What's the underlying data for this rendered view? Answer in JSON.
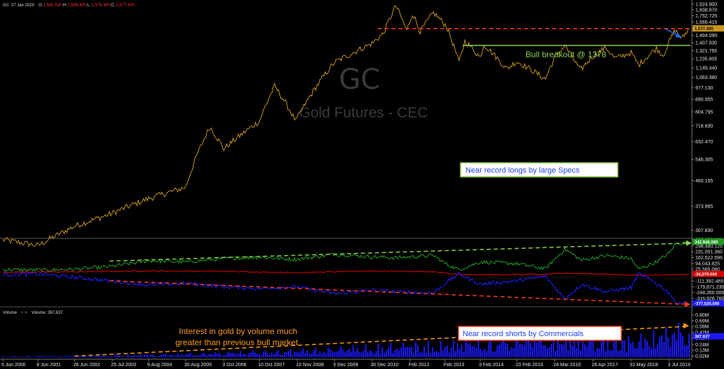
{
  "header": {
    "symbol": "GC",
    "date": "27 Jan 2020",
    "o_label": "O:",
    "o_value": "1,582.530",
    "h_label": "H:",
    "h_value": "1,589.400",
    "l_label": "L:",
    "l_value": "1,575.300",
    "c_label": "C:",
    "c_value": "1,577.400"
  },
  "watermark": {
    "symbol": "GC",
    "name": "Gold Futures - CEC"
  },
  "volume_header": {
    "label": "Volume",
    "series": "Volume: 387,637"
  },
  "colors": {
    "price": "#c8961e",
    "long": "#1f9a1f",
    "net": "#d40000",
    "short": "#1e1eff",
    "volume": "#1a1aff",
    "annotation_green": "#8fd14f",
    "annotation_red": "#ff3b1a",
    "annotation_orange": "#ff9d1a",
    "arrow_blue": "#1f6fff"
  },
  "chart_data": [
    {
      "type": "line",
      "panel": "price",
      "y_scale": "log",
      "ylim": [
        300,
        1924.9
      ],
      "y_ticks": [
        "1,924.900",
        "1,838.870",
        "1,752.725",
        "1,666.415",
        "1,580.340",
        "1,494.090",
        "1,407.930",
        "1,321.765",
        "1,235.605",
        "1,149.440",
        "1,063.380",
        "977.130",
        "890.955",
        "804.795",
        "718.630",
        "632.470",
        "546.305",
        "460.155",
        "373.885",
        "307.830"
      ],
      "y_tick_values": [
        1924.9,
        1838.87,
        1752.725,
        1666.415,
        1580.34,
        1494.09,
        1407.93,
        1321.765,
        1235.605,
        1149.44,
        1063.38,
        977.13,
        890.955,
        804.795,
        718.63,
        632.47,
        546.305,
        460.155,
        373.885,
        307.83
      ],
      "last_value_label": "1,577.400",
      "series": [
        {
          "points": [
            [
              "2000-06-05",
              285
            ],
            [
              "2001-06-08",
              272
            ],
            [
              "2002-06-26",
              318
            ],
            [
              "2003-06-25",
              350
            ],
            [
              "2004-08-09",
              398
            ],
            [
              "2005-08-30",
              436
            ],
            [
              "2006-05-10",
              712
            ],
            [
              "2006-10-03",
              595
            ],
            [
              "2007-10-10",
              745
            ],
            [
              "2008-03-17",
              990
            ],
            [
              "2008-10-24",
              745
            ],
            [
              "2009-12-03",
              1200
            ],
            [
              "2010-12-30",
              1400
            ],
            [
              "2011-04-30",
              1520
            ],
            [
              "2011-09-06",
              1900
            ],
            [
              "2011-12-29",
              1550
            ],
            [
              "2012-02-28",
              1790
            ],
            [
              "2012-05-16",
              1540
            ],
            [
              "2012-10-04",
              1795
            ],
            [
              "2013-02-15",
              1610
            ],
            [
              "2013-06-27",
              1200
            ],
            [
              "2013-08-28",
              1430
            ],
            [
              "2014-02-03",
              1250
            ],
            [
              "2014-03-14",
              1390
            ],
            [
              "2014-11-05",
              1140
            ],
            [
              "2015-02-23",
              1210
            ],
            [
              "2015-12-17",
              1050
            ],
            [
              "2016-03-24",
              1250
            ],
            [
              "2016-07-06",
              1375
            ],
            [
              "2016-12-15",
              1125
            ],
            [
              "2017-04-28",
              1265
            ],
            [
              "2017-09-08",
              1355
            ],
            [
              "2017-12-12",
              1240
            ],
            [
              "2018-05-31",
              1300
            ],
            [
              "2018-08-16",
              1175
            ],
            [
              "2019-02-20",
              1345
            ],
            [
              "2019-05-02",
              1270
            ],
            [
              "2019-07-03",
              1420
            ],
            [
              "2019-09-04",
              1560
            ],
            [
              "2019-11-12",
              1455
            ],
            [
              "2020-01-27",
              1577.4
            ]
          ]
        }
      ],
      "annotations": [
        {
          "kind": "hline",
          "value": 1580,
          "style": "dashed",
          "color": "annotation_red"
        },
        {
          "kind": "hline",
          "value": 1378,
          "style": "solid",
          "color": "annotation_green",
          "from": "2013-08-01"
        },
        {
          "kind": "label",
          "text": "Bull breakout @ 1378"
        }
      ]
    },
    {
      "type": "line",
      "panel": "cot",
      "ylim": [
        -390000,
        370000
      ],
      "y_ticks": [
        "367,958.880",
        "298,480.125",
        "231,001.360",
        "162,522.595",
        "94,043.825",
        "25,565.060",
        "-42,913.700",
        "-111,392.465",
        "-179,871.230",
        "-248,350.000",
        "-316,828.765",
        "-385,307.530"
      ],
      "y_tick_values": [
        367958.88,
        298480.125,
        231001.36,
        162522.595,
        94043.825,
        25565.06,
        -42913.7,
        -111392.465,
        -179871.23,
        -248350,
        -316828.765,
        -385307.53
      ],
      "last_value_labels": [
        "342,946.000",
        "-34,579.000",
        "-377,525.000"
      ],
      "series": [
        {
          "label_key": "long",
          "points": [
            [
              "2000-06-05",
              20000
            ],
            [
              "2001-06-08",
              15000
            ],
            [
              "2002-06-26",
              25000
            ],
            [
              "2003-06-25",
              55000
            ],
            [
              "2004-08-09",
              125000
            ],
            [
              "2005-08-30",
              110000
            ],
            [
              "2006-10-03",
              150000
            ],
            [
              "2007-10-10",
              165000
            ],
            [
              "2008-10-24",
              140000
            ],
            [
              "2009-12-03",
              200000
            ],
            [
              "2010-12-30",
              170000
            ],
            [
              "2011-09-06",
              160000
            ],
            [
              "2012-10-04",
              185000
            ],
            [
              "2013-02-15",
              85000
            ],
            [
              "2013-06-27",
              20000
            ],
            [
              "2014-02-03",
              110000
            ],
            [
              "2015-02-23",
              90000
            ],
            [
              "2015-12-17",
              30000
            ],
            [
              "2016-07-06",
              260000
            ],
            [
              "2017-01-01",
              130000
            ],
            [
              "2017-09-08",
              185000
            ],
            [
              "2018-05-31",
              150000
            ],
            [
              "2018-08-16",
              25000
            ],
            [
              "2019-02-20",
              110000
            ],
            [
              "2019-07-03",
              215000
            ],
            [
              "2019-09-04",
              320000
            ],
            [
              "2020-01-27",
              342946
            ]
          ]
        },
        {
          "label_key": "net",
          "points": [
            [
              "2000-06-05",
              -10000
            ],
            [
              "2002-06-26",
              -5000
            ],
            [
              "2004-08-09",
              5000
            ],
            [
              "2006-10-03",
              0
            ],
            [
              "2008-10-24",
              -15000
            ],
            [
              "2010-12-30",
              5000
            ],
            [
              "2012-10-04",
              -5000
            ],
            [
              "2013-06-27",
              -40000
            ],
            [
              "2015-12-17",
              -35000
            ],
            [
              "2016-07-06",
              -20000
            ],
            [
              "2018-08-16",
              -45000
            ],
            [
              "2020-01-27",
              -34579
            ]
          ]
        },
        {
          "label_key": "short",
          "points": [
            [
              "2000-06-05",
              -40000
            ],
            [
              "2001-06-08",
              -30000
            ],
            [
              "2002-06-26",
              -70000
            ],
            [
              "2003-06-25",
              -110000
            ],
            [
              "2004-08-09",
              -160000
            ],
            [
              "2005-08-30",
              -140000
            ],
            [
              "2006-10-03",
              -180000
            ],
            [
              "2007-10-10",
              -200000
            ],
            [
              "2008-10-24",
              -180000
            ],
            [
              "2009-12-03",
              -260000
            ],
            [
              "2010-12-30",
              -220000
            ],
            [
              "2011-09-06",
              -240000
            ],
            [
              "2012-10-04",
              -250000
            ],
            [
              "2013-02-15",
              -130000
            ],
            [
              "2013-06-27",
              -30000
            ],
            [
              "2014-02-03",
              -150000
            ],
            [
              "2015-02-23",
              -110000
            ],
            [
              "2015-12-17",
              -60000
            ],
            [
              "2016-07-06",
              -320000
            ],
            [
              "2017-01-01",
              -150000
            ],
            [
              "2017-09-08",
              -240000
            ],
            [
              "2018-05-31",
              -190000
            ],
            [
              "2018-08-16",
              -25000
            ],
            [
              "2019-02-20",
              -140000
            ],
            [
              "2019-07-03",
              -250000
            ],
            [
              "2019-09-04",
              -360000
            ],
            [
              "2020-01-27",
              -377525
            ]
          ]
        }
      ],
      "annotations": [
        {
          "kind": "trend",
          "from": [
            "2003-06-25",
            120000
          ],
          "to": [
            "2020-01-27",
            330000
          ],
          "style": "dashed",
          "color": "annotation_green"
        },
        {
          "kind": "trend",
          "from": [
            "2003-06-25",
            -110000
          ],
          "to": [
            "2020-01-27",
            -385000
          ],
          "style": "dashed",
          "color": "annotation_red"
        },
        {
          "kind": "label",
          "text": "Near record longs by large Specs"
        },
        {
          "kind": "label",
          "text": "Near record shorts by Commercials"
        }
      ]
    },
    {
      "type": "bar",
      "panel": "volume",
      "ylim": [
        0,
        0.9
      ],
      "y_unit": "M",
      "y_ticks": [
        "0.80M",
        "0.69M",
        "0.58M",
        "0.47M",
        "0.36M",
        "0.24M",
        "0.13M",
        "0.02M"
      ],
      "y_tick_values": [
        0.8,
        0.69,
        0.58,
        0.47,
        0.36,
        0.24,
        0.13,
        0.02
      ],
      "last_value_label": "387,637",
      "volume_envelope": [
        [
          "2000-06-05",
          0.02
        ],
        [
          "2002-06-26",
          0.03
        ],
        [
          "2004-08-09",
          0.06
        ],
        [
          "2006-10-03",
          0.1
        ],
        [
          "2008-10-24",
          0.15
        ],
        [
          "2010-12-30",
          0.25
        ],
        [
          "2012-10-04",
          0.3
        ],
        [
          "2014-02-03",
          0.35
        ],
        [
          "2016-07-06",
          0.45
        ],
        [
          "2018-05-31",
          0.4
        ],
        [
          "2019-09-04",
          0.6
        ],
        [
          "2020-01-27",
          0.8
        ]
      ],
      "annotations": [
        {
          "kind": "trend",
          "from": [
            "2002-06-26",
            0.02
          ],
          "to": [
            "2020-01-27",
            0.58
          ],
          "style": "dashed",
          "color": "annotation_orange"
        },
        {
          "kind": "label",
          "text": "Interest in gold by volume much"
        },
        {
          "kind": "label",
          "text": "greater than previous bull market"
        }
      ]
    }
  ],
  "x_axis": {
    "range": [
      "2000-06-05",
      "2020-01-27"
    ],
    "ticks": [
      {
        "date": "2000-06-05",
        "label": "5 Jun 2000"
      },
      {
        "date": "2001-06-08",
        "label": "8 Jun 2001"
      },
      {
        "date": "2002-06-26",
        "label": "26 Jun 2002"
      },
      {
        "date": "2003-07-25",
        "label": "25 Jul 2003"
      },
      {
        "date": "2004-08-09",
        "label": "9 Aug 2004"
      },
      {
        "date": "2005-08-30",
        "label": "30 Aug 2005"
      },
      {
        "date": "2006-10-03",
        "label": "3 Oct 2006"
      },
      {
        "date": "2007-10-10",
        "label": "10 Oct 2007"
      },
      {
        "date": "2008-11-10",
        "label": "10 Nov 2008"
      },
      {
        "date": "2009-12-03",
        "label": "3 Dec 2009"
      },
      {
        "date": "2010-12-30",
        "label": "30 Dec 2010"
      },
      {
        "date": "2012-02-01",
        "label": "Feb 2012"
      },
      {
        "date": "2013-02-01",
        "label": "Feb 2013"
      },
      {
        "date": "2014-02-03",
        "label": "3 Feb 2014"
      },
      {
        "date": "2015-02-23",
        "label": "23 Feb 2015"
      },
      {
        "date": "2016-03-24",
        "label": "24 Mar 2016"
      },
      {
        "date": "2017-04-28",
        "label": "28 Apr 2017"
      },
      {
        "date": "2018-05-31",
        "label": "31 May 2018"
      },
      {
        "date": "2019-07-03",
        "label": "3 Jul 2019"
      }
    ]
  },
  "annotations": {
    "bull_breakout": "Bull breakout @ 1378",
    "longs": "Near record longs by large Specs",
    "shorts": "Near record shorts by Commercials",
    "volume_line1": "Interest in gold by volume much",
    "volume_line2": "greater than previous bull market"
  }
}
